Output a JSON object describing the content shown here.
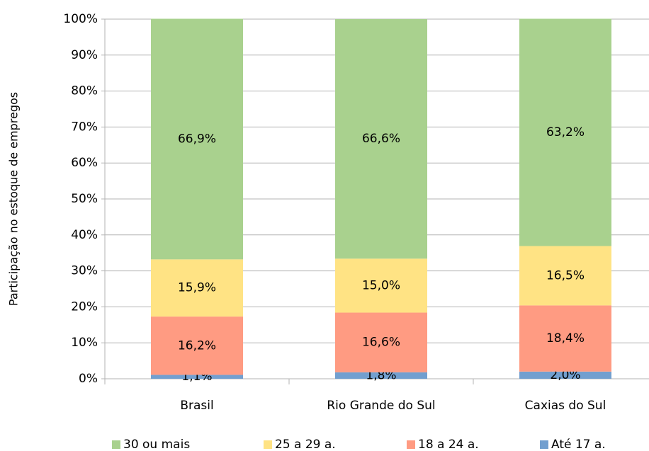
{
  "chart_data": {
    "type": "stacked_bar",
    "y_label": "Participação no estoque de empregos",
    "categories": [
      "Brasil",
      "Rio Grande do Sul",
      "Caxias do Sul"
    ],
    "series": [
      {
        "name": "Até 17 a.",
        "color": "#729fcf",
        "values": [
          1.1,
          1.8,
          2.0
        ],
        "value_labels": [
          "1,1%",
          "1,8%",
          "2,0%"
        ]
      },
      {
        "name": "18 a 24 a.",
        "color": "#ff9b82",
        "values": [
          16.2,
          16.6,
          18.4
        ],
        "value_labels": [
          "16,2%",
          "16,6%",
          "18,4%"
        ]
      },
      {
        "name": "25 a 29 a.",
        "color": "#ffe384",
        "values": [
          15.9,
          15.0,
          16.5
        ],
        "value_labels": [
          "15,9%",
          "15,0%",
          "16,5%"
        ]
      },
      {
        "name": "30 ou mais",
        "color": "#a9d18e",
        "values": [
          66.9,
          66.6,
          63.2
        ],
        "value_labels": [
          "66,9%",
          "66,6%",
          "63,2%"
        ]
      }
    ],
    "ylim": [
      0,
      100
    ],
    "yticks": [
      {
        "value": 0,
        "label": "0%"
      },
      {
        "value": 10,
        "label": "10%"
      },
      {
        "value": 20,
        "label": "20%"
      },
      {
        "value": 30,
        "label": "30%"
      },
      {
        "value": 40,
        "label": "40%"
      },
      {
        "value": 50,
        "label": "50%"
      },
      {
        "value": 60,
        "label": "60%"
      },
      {
        "value": 70,
        "label": "70%"
      },
      {
        "value": 80,
        "label": "80%"
      },
      {
        "value": 90,
        "label": "90%"
      },
      {
        "value": 100,
        "label": "100%"
      }
    ],
    "grid": true,
    "legend": "bottom"
  }
}
